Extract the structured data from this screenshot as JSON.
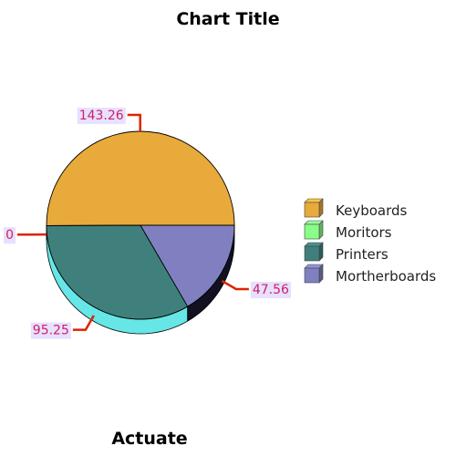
{
  "chart_data": {
    "type": "pie",
    "title": "Chart Title",
    "footer": "Actuate",
    "categories": [
      "Keyboards",
      "Moritors",
      "Printers",
      "Mortherboards"
    ],
    "values": [
      143.26,
      0,
      95.25,
      47.56
    ],
    "colors": [
      "#e8aa3a",
      "#88ff88",
      "#3f807c",
      "#8080c0"
    ],
    "label_color": "#cc2266",
    "leader_color": "#dd2200",
    "label_bg": "#e8e0ff",
    "legend_position": "right"
  }
}
